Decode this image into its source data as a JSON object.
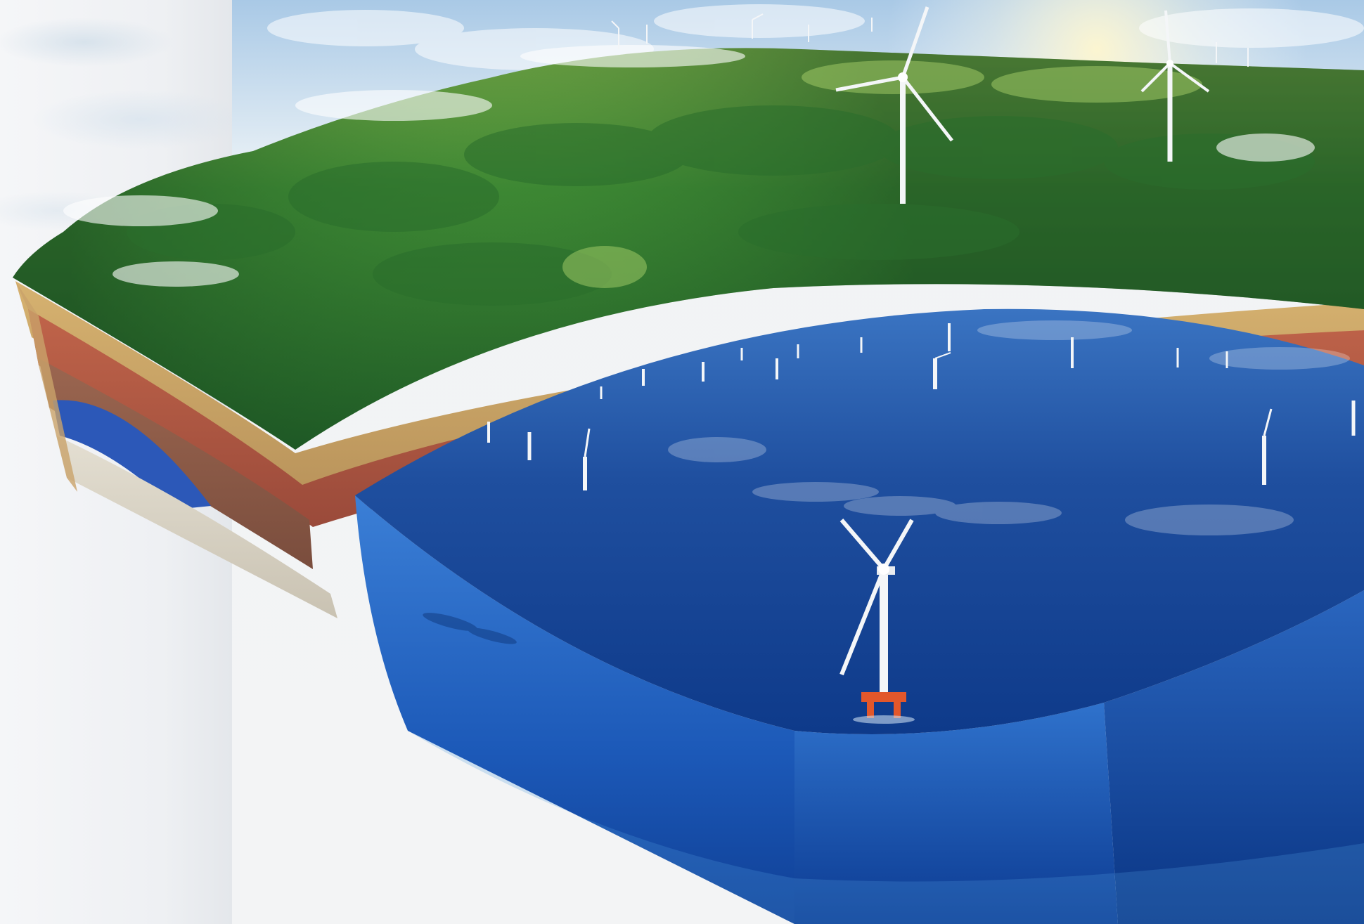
{
  "scene": {
    "subject": "wind-farm-cross-section",
    "colors": {
      "sky_top": "#b7d3ea",
      "sky_bottom": "#eaf2f6",
      "forest_dark": "#1f5a26",
      "forest_mid": "#3f8a34",
      "forest_light": "#8fbe4c",
      "soil_red": "#b35a44",
      "soil_tan": "#c9a464",
      "soil_brown": "#8c5a45",
      "bedrock": "#d8d2c4",
      "aquifer": "#2c58b8",
      "sea_surface": "#1f4f9f",
      "sea_deep": "#0e3a8a",
      "sea_wall_light": "#2e6cc8",
      "turbine_white": "#f4f6f8",
      "platform_orange": "#e2572b"
    }
  }
}
